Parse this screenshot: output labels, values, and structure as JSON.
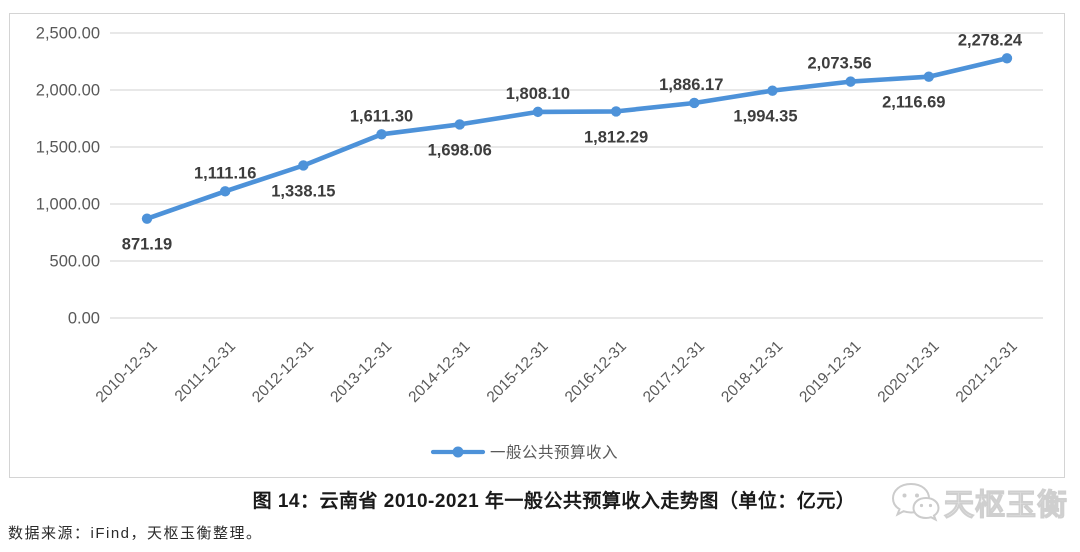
{
  "figure": {
    "caption": "图 14：云南省 2010-2021 年一般公共预算收入走势图（单位：亿元）",
    "source_note": "数据来源：iFind，天枢玉衡整理。",
    "watermark_text": "天枢玉衡"
  },
  "chart_data": {
    "type": "line",
    "title": "图 14：云南省 2010-2021 年一般公共预算收入走势图（单位：亿元）",
    "categories": [
      "2010-12-31",
      "2011-12-31",
      "2012-12-31",
      "2013-12-31",
      "2014-12-31",
      "2015-12-31",
      "2016-12-31",
      "2017-12-31",
      "2018-12-31",
      "2019-12-31",
      "2020-12-31",
      "2021-12-31"
    ],
    "series": [
      {
        "name": "一般公共预算收入",
        "values": [
          871.19,
          1111.16,
          1338.15,
          1611.3,
          1698.06,
          1808.1,
          1812.29,
          1886.17,
          1994.35,
          2073.56,
          2116.69,
          2278.24
        ],
        "color": "#4d92d9"
      }
    ],
    "data_labels": [
      "871.19",
      "1,111.16",
      "1,338.15",
      "1,611.30",
      "1,698.06",
      "1,808.10",
      "1,812.29",
      "1,886.17",
      "1,994.35",
      "2,073.56",
      "2,116.69",
      "2,278.24"
    ],
    "data_label_side": [
      "below",
      "above",
      "below",
      "above",
      "below",
      "above",
      "below",
      "above",
      "below",
      "above",
      "below",
      "above"
    ],
    "ylim": [
      0,
      2500
    ],
    "ytick_labels": [
      "0.00",
      "500.00",
      "1,000.00",
      "1,500.00",
      "2,000.00",
      "2,500.00"
    ],
    "grid": true,
    "legend_position": "bottom",
    "xlabel": "",
    "ylabel": ""
  },
  "colors": {
    "line": "#4d92d9",
    "grid": "#d9d9d9",
    "frame": "#d4d4d4",
    "axis_text": "#595959",
    "data_label_text": "#3d3d3d",
    "legend_text": "#595959"
  }
}
